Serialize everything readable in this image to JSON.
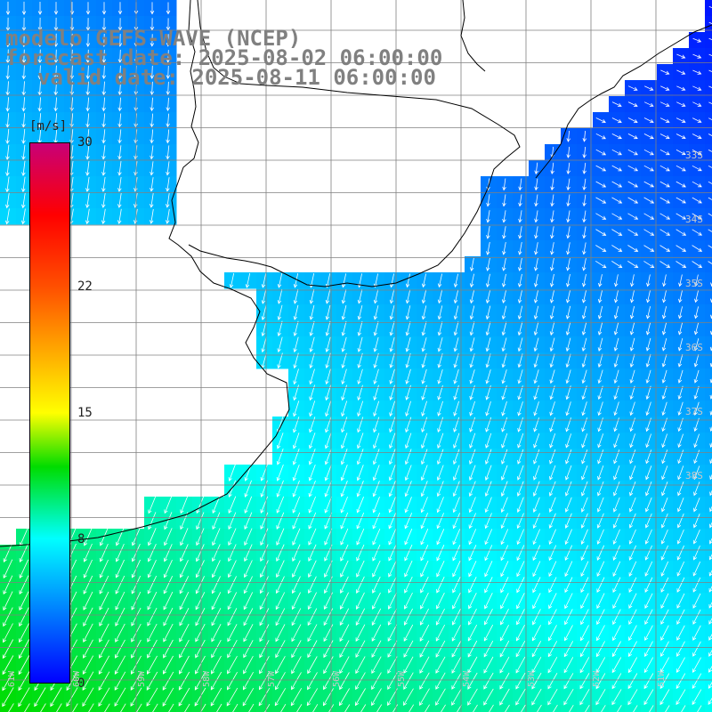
{
  "header": {
    "line1": "modelo GEFS-WAVE (NCEP)",
    "line2": "forecast date: 2025-08-02 06:00:00",
    "line3": "valid date: 2025-08-11 06:00:00"
  },
  "colorbar": {
    "unit": "[m/s]",
    "min": 0,
    "max": 30,
    "ticks": [
      "30",
      "22",
      "15",
      "8",
      "0"
    ],
    "tick_values": [
      30,
      22,
      15,
      8,
      0
    ]
  },
  "grid_labels": {
    "lat": [
      "33S",
      "34S",
      "35S",
      "36S",
      "37S",
      "38S"
    ],
    "lon": [
      "61W",
      "60W",
      "59W",
      "58W",
      "57W",
      "56W",
      "55W",
      "54W",
      "53W",
      "52W",
      "51W"
    ]
  },
  "colors": {
    "land": "#ffffff",
    "coast": "#000000",
    "grid": "#808080",
    "arrow": "#ffffff"
  }
}
